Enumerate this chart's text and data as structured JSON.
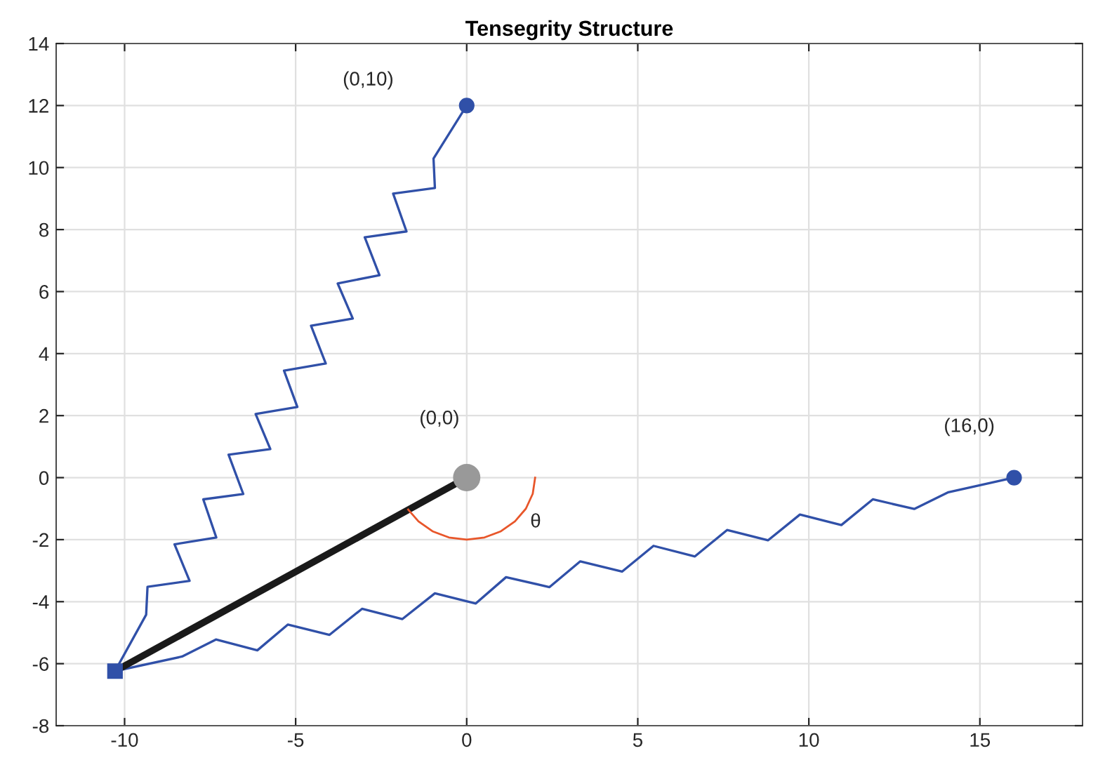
{
  "chart_data": {
    "type": "line",
    "title": "Tensegrity Structure",
    "xlim": [
      -12,
      18
    ],
    "xticks": [
      -10,
      -5,
      0,
      5,
      10,
      15
    ],
    "ylim": [
      -8,
      14
    ],
    "yticks": [
      -8,
      -6,
      -4,
      -2,
      0,
      2,
      4,
      6,
      8,
      10,
      12,
      14
    ],
    "grid": true,
    "series": [
      {
        "color": "#3050a8",
        "x": [
          -10.28,
          -9.37,
          -9.33,
          -8.1,
          -8.54,
          -7.32,
          -7.7,
          -6.53,
          -6.96,
          -5.74,
          -6.17,
          -4.95,
          -5.34,
          -4.12,
          -4.55,
          -3.33,
          -3.77,
          -2.55,
          -2.98,
          -1.76,
          -2.15,
          -0.93,
          -0.97,
          0
        ],
        "values": [
          -6.24,
          -4.42,
          -3.52,
          -3.33,
          -2.15,
          -1.93,
          -0.7,
          -0.53,
          0.74,
          0.92,
          2.05,
          2.28,
          3.45,
          3.68,
          4.9,
          5.13,
          6.26,
          6.53,
          7.75,
          7.94,
          9.16,
          9.34,
          10.29,
          12.0
        ]
      },
      {
        "color": "#3050a8",
        "x": [
          -10.28,
          -8.32,
          -7.33,
          -6.12,
          -5.23,
          -4.01,
          -3.06,
          -1.88,
          -0.93,
          0.26,
          1.15,
          2.42,
          3.32,
          4.54,
          5.46,
          6.67,
          7.61,
          8.81,
          9.74,
          10.95,
          11.87,
          13.08,
          14.08,
          16.0
        ],
        "values": [
          -6.24,
          -5.77,
          -5.22,
          -5.57,
          -4.74,
          -5.07,
          -4.23,
          -4.56,
          -3.73,
          -4.06,
          -3.21,
          -3.53,
          -2.7,
          -3.03,
          -2.2,
          -2.54,
          -1.69,
          -2.02,
          -1.19,
          -1.53,
          -0.7,
          -1.01,
          -0.47,
          0
        ]
      },
      {
        "color": "#1a1a1a",
        "x": [
          -10.28,
          0
        ],
        "values": [
          -6.24,
          0
        ]
      },
      {
        "color": "#e8562a",
        "x": [
          -1.71,
          -1.41,
          -1.0,
          -0.52,
          0,
          0.52,
          1.0,
          1.41,
          1.73,
          1.93,
          2.0
        ],
        "values": [
          -1.03,
          -1.41,
          -1.73,
          -1.93,
          -2.0,
          -1.93,
          -1.73,
          -1.41,
          -1.0,
          -0.52,
          0
        ]
      },
      {
        "type": "scatter",
        "color": "#3050a8",
        "marker": "circle",
        "x": [
          0,
          16
        ],
        "values": [
          12,
          0
        ]
      },
      {
        "type": "scatter",
        "color": "#3050a8",
        "marker": "square",
        "x": [
          -10.28
        ],
        "values": [
          -6.24
        ]
      },
      {
        "type": "scatter",
        "color": "#999999",
        "marker": "circle",
        "x": [
          0
        ],
        "values": [
          0
        ]
      }
    ],
    "annotations": [
      "(0,10)",
      {
        "text": "(0,0)",
        "x": 0,
        "y": 0
      },
      {
        "text": "(16,0)",
        "x": 16,
        "y": 0
      },
      {
        "text": "θ",
        "x": 1.73,
        "y": -1.0
      }
    ]
  }
}
